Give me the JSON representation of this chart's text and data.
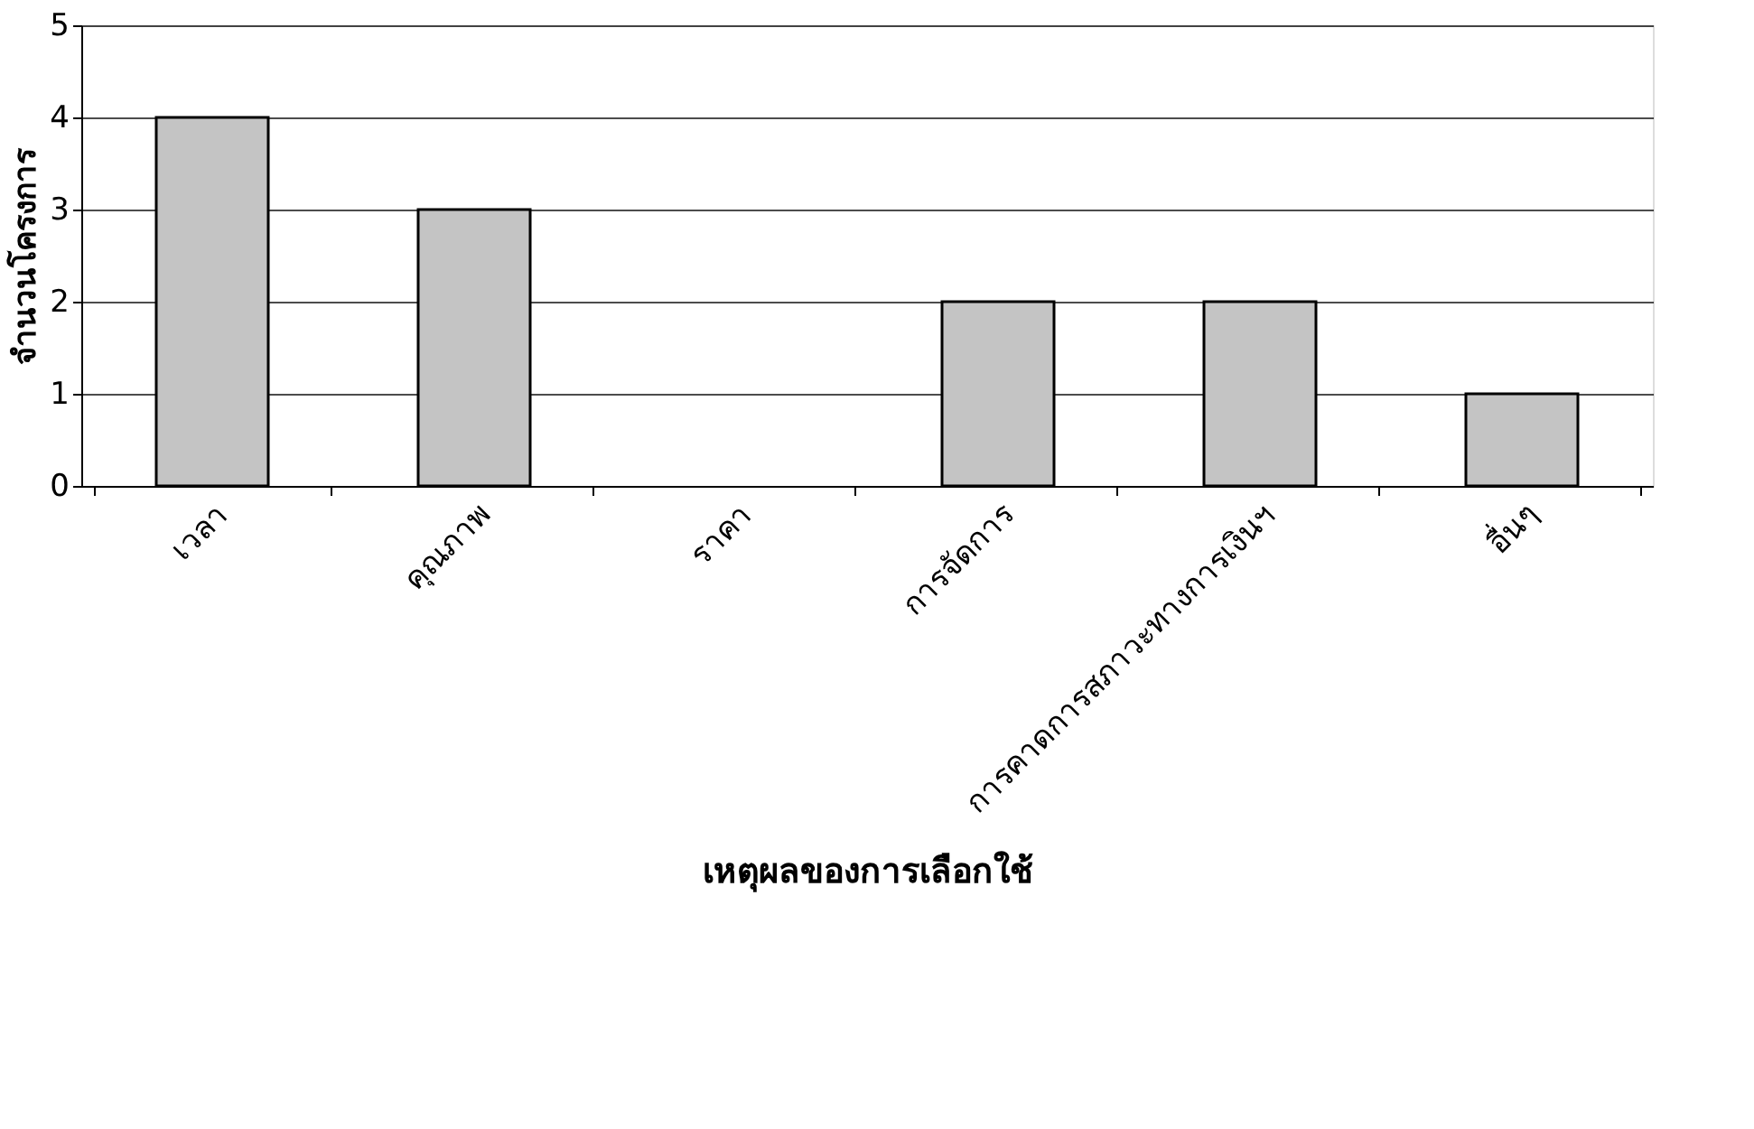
{
  "chart_data": {
    "type": "bar",
    "xlabel": "เหตุผลของการเลือกใช้",
    "ylabel": "จำนวนโครงการ",
    "categories": [
      "เวลา",
      "คุณภาพ",
      "ราคา",
      "การจัดการ",
      "การคาดการสภาวะทางการเงินฯ",
      "อื่นๆ"
    ],
    "values": [
      4,
      3,
      0,
      2,
      2,
      1
    ],
    "color": "#c4c4c4",
    "ylim": [
      0,
      5
    ],
    "yticks": [
      0,
      1,
      2,
      3,
      4,
      5
    ],
    "grid": "y"
  }
}
